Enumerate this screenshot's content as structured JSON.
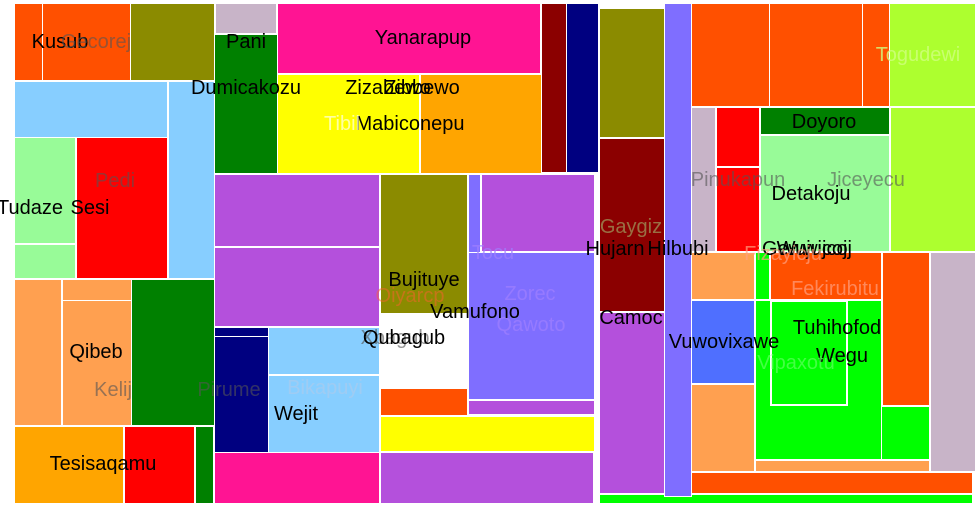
{
  "chart_data": {
    "type": "treemap",
    "title": "",
    "cells": [
      {
        "label": "Kusub",
        "color": "#ff5000",
        "value": 4
      },
      {
        "label": "Gecorej",
        "color": "#ff5000",
        "value": 12
      },
      {
        "label": "",
        "color": "#8b8b00",
        "value": 12
      },
      {
        "label": "Pani",
        "color": "#c8b4c8",
        "value": 8
      },
      {
        "label": "Yanarapup",
        "color": "#ff1493",
        "value": 28
      },
      {
        "label": "",
        "color": "#8b0000",
        "value": 4
      },
      {
        "label": "",
        "color": "#000080",
        "value": 5
      },
      {
        "label": "Dumicakozu",
        "color": "#87ceff",
        "value": 12
      },
      {
        "label": "",
        "color": "#008000",
        "value": 10
      },
      {
        "label": "Tudaze",
        "color": "#98fb98",
        "value": 8
      },
      {
        "label": "Pedi",
        "color": "#ff0000",
        "value": 16
      },
      {
        "label": "Sesi",
        "color": "#ff0000",
        "value": 0
      },
      {
        "label": "Zibbewo",
        "color": "#ffa500",
        "value": 17
      },
      {
        "label": "Zizabewo",
        "color": "#ffff00",
        "value": 14
      },
      {
        "label": "Mabiconepu",
        "color": "#ffff00",
        "value": 0
      },
      {
        "label": "Tibil",
        "color": "#ffff00",
        "value": 0
      },
      {
        "label": "",
        "color": "#b450dc",
        "value": 16
      },
      {
        "label": "",
        "color": "#b450dc",
        "value": 12
      },
      {
        "label": "Bujituye",
        "color": "#8b8b00",
        "value": 21
      },
      {
        "label": "Tocu",
        "color": "#b450dc",
        "value": 12
      },
      {
        "label": "Zorec",
        "color": "#7f6eff",
        "value": 5
      },
      {
        "label": "Qawoto",
        "color": "#7f6eff",
        "value": 21
      },
      {
        "label": "Vamufono",
        "color": "#b450dc",
        "value": 0
      },
      {
        "label": "Oiyarcp",
        "color": "#ff5000",
        "value": 4
      },
      {
        "label": "Qibeb",
        "color": "#ffa050",
        "value": 10
      },
      {
        "label": "Kelij",
        "color": "#ffa050",
        "value": 0
      },
      {
        "label": "Pirume",
        "color": "#008000",
        "value": 12
      },
      {
        "label": "Bikapuyi",
        "color": "#87ceff",
        "value": 6
      },
      {
        "label": "Xbagub",
        "color": "#87ceff",
        "value": 0
      },
      {
        "label": "Qubagub",
        "color": "#87ceff",
        "value": 0
      },
      {
        "label": "Wejit",
        "color": "#87ceff",
        "value": 11
      },
      {
        "label": "",
        "color": "#000080",
        "value": 7
      },
      {
        "label": "",
        "color": "#ffff00",
        "value": 7
      },
      {
        "label": "",
        "color": "#ff1493",
        "value": 9
      },
      {
        "label": "Tesisaqamu",
        "color": "#ffa500",
        "value": 14
      },
      {
        "label": "Hujarn",
        "color": "#8b0000",
        "value": 15
      },
      {
        "label": "Gaygiz",
        "color": "#8b8b00",
        "value": 11
      },
      {
        "label": "Hilbubi",
        "color": "#7f6eff",
        "value": 6
      },
      {
        "label": "Camoc",
        "color": "#b450dc",
        "value": 17
      },
      {
        "label": "Togudewi",
        "color": "#adff2f",
        "value": 19
      },
      {
        "label": "Pinukapun",
        "color": "#c8b4c8",
        "value": 6
      },
      {
        "label": "Doyoro",
        "color": "#008000",
        "value": 3
      },
      {
        "label": "Detakoju",
        "color": "#98fb98",
        "value": 13
      },
      {
        "label": "Jiceyecu",
        "color": "#98fb98",
        "value": 0
      },
      {
        "label": "Gewwijcoj",
        "color": "#ff0000",
        "value": 4
      },
      {
        "label": "Wujucoj",
        "color": "#ff5000",
        "value": 6
      },
      {
        "label": "Fizayicju",
        "color": "#ffa050",
        "value": 0
      },
      {
        "label": "Fekirubitu",
        "color": "#ff5000",
        "value": 0
      },
      {
        "label": "Vuwovixawe",
        "color": "#4f6fff",
        "value": 7
      },
      {
        "label": "Tuhihofod",
        "color": "#00ff00",
        "value": 10
      },
      {
        "label": "Wegu",
        "color": "#00ff00",
        "value": 0
      },
      {
        "label": "Vipaxotu",
        "color": "#00ff00",
        "value": 0
      }
    ]
  }
}
